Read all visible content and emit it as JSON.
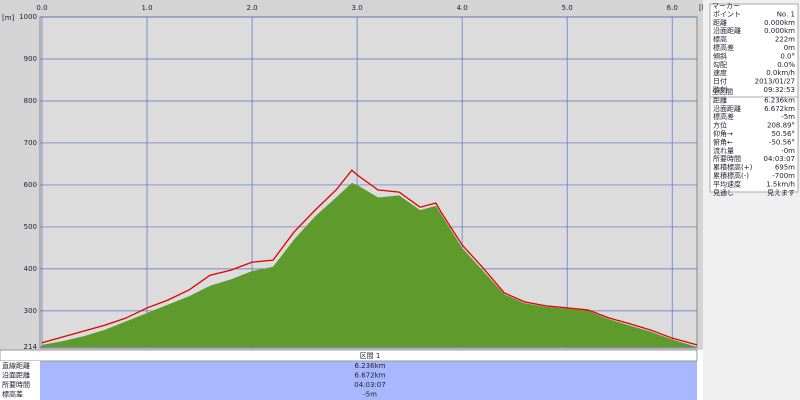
{
  "chart_data": {
    "type": "area-line",
    "y_label": "[m]",
    "x_label": "[km]",
    "x": [
      0,
      0.2,
      0.4,
      0.6,
      0.8,
      1.0,
      1.2,
      1.4,
      1.6,
      1.8,
      2.0,
      2.2,
      2.4,
      2.6,
      2.8,
      2.95,
      3.0,
      3.2,
      3.4,
      3.6,
      3.75,
      3.8,
      4.0,
      4.2,
      4.4,
      4.6,
      4.8,
      5.0,
      5.2,
      5.4,
      5.6,
      5.8,
      6.0,
      6.236
    ],
    "series": [
      {
        "color": "#e00000",
        "style": "line",
        "values": [
          224,
          238,
          252,
          266,
          283,
          307,
          326,
          350,
          385,
          397,
          416,
          421,
          488,
          540,
          588,
          635,
          624,
          588,
          583,
          547,
          557,
          535,
          457,
          402,
          343,
          321,
          312,
          307,
          302,
          283,
          269,
          254,
          235,
          219
        ]
      },
      {
        "color": "#5e9a2c",
        "style": "area",
        "values": [
          219,
          228,
          240,
          255,
          275,
          295,
          315,
          335,
          360,
          375,
          395,
          405,
          470,
          525,
          570,
          605,
          600,
          570,
          575,
          540,
          550,
          530,
          450,
          395,
          340,
          318,
          310,
          305,
          300,
          280,
          265,
          250,
          232,
          214
        ]
      }
    ],
    "xlim": [
      0,
      6.236
    ],
    "xticks": [
      {
        "value": 0,
        "label": "0.0"
      },
      {
        "value": 1,
        "label": "1.0"
      },
      {
        "value": 2,
        "label": "2.0"
      },
      {
        "value": 3,
        "label": "3.0"
      },
      {
        "value": 4,
        "label": "4.0"
      },
      {
        "value": 5,
        "label": "5.0"
      },
      {
        "value": 6,
        "label": "6.0"
      }
    ],
    "ylim": [
      214,
      1000
    ],
    "yticks": [
      214,
      300,
      400,
      500,
      600,
      700,
      800,
      900,
      1000
    ],
    "grid": true
  },
  "section_table": {
    "title": "区間 1",
    "rows": [
      [
        "直線距離",
        "6.236km"
      ],
      [
        "沿面距離",
        "6.672km"
      ],
      [
        "所要時間",
        "04:03:07"
      ],
      [
        "標高差",
        "-5m"
      ]
    ]
  },
  "marker_panel": {
    "title": "マーカー",
    "rows": [
      [
        "ポイント",
        "No. 1"
      ],
      [
        "距離",
        "0.000km"
      ],
      [
        "沿面距離",
        "0.000km"
      ],
      [
        "標高",
        "222m"
      ],
      [
        "標高差",
        "0m"
      ],
      [
        "傾斜",
        "0.0°"
      ],
      [
        "勾配",
        "0.0%"
      ],
      [
        "速度",
        "0.0km/h"
      ],
      [
        "日付",
        "2013/01/27"
      ],
      [
        "時刻",
        "09:32:53"
      ]
    ]
  },
  "total_panel": {
    "title": "全区間",
    "rows": [
      [
        "距離",
        "6.236km"
      ],
      [
        "沿面距離",
        "6.672km"
      ],
      [
        "標高差",
        "-5m"
      ],
      [
        "方位",
        "208.89°"
      ],
      [
        "仰角→",
        "50.56°"
      ],
      [
        "俯角←",
        "-50.56°"
      ],
      [
        "流れ量",
        "-0m"
      ],
      [
        "所要時間",
        "04:03:07"
      ],
      [
        "累積標高(+)",
        "695m"
      ],
      [
        "累積標高(-)",
        "-700m"
      ],
      [
        "平均速度",
        "1.5km/h"
      ],
      [
        "見通し",
        "見えます"
      ]
    ]
  }
}
